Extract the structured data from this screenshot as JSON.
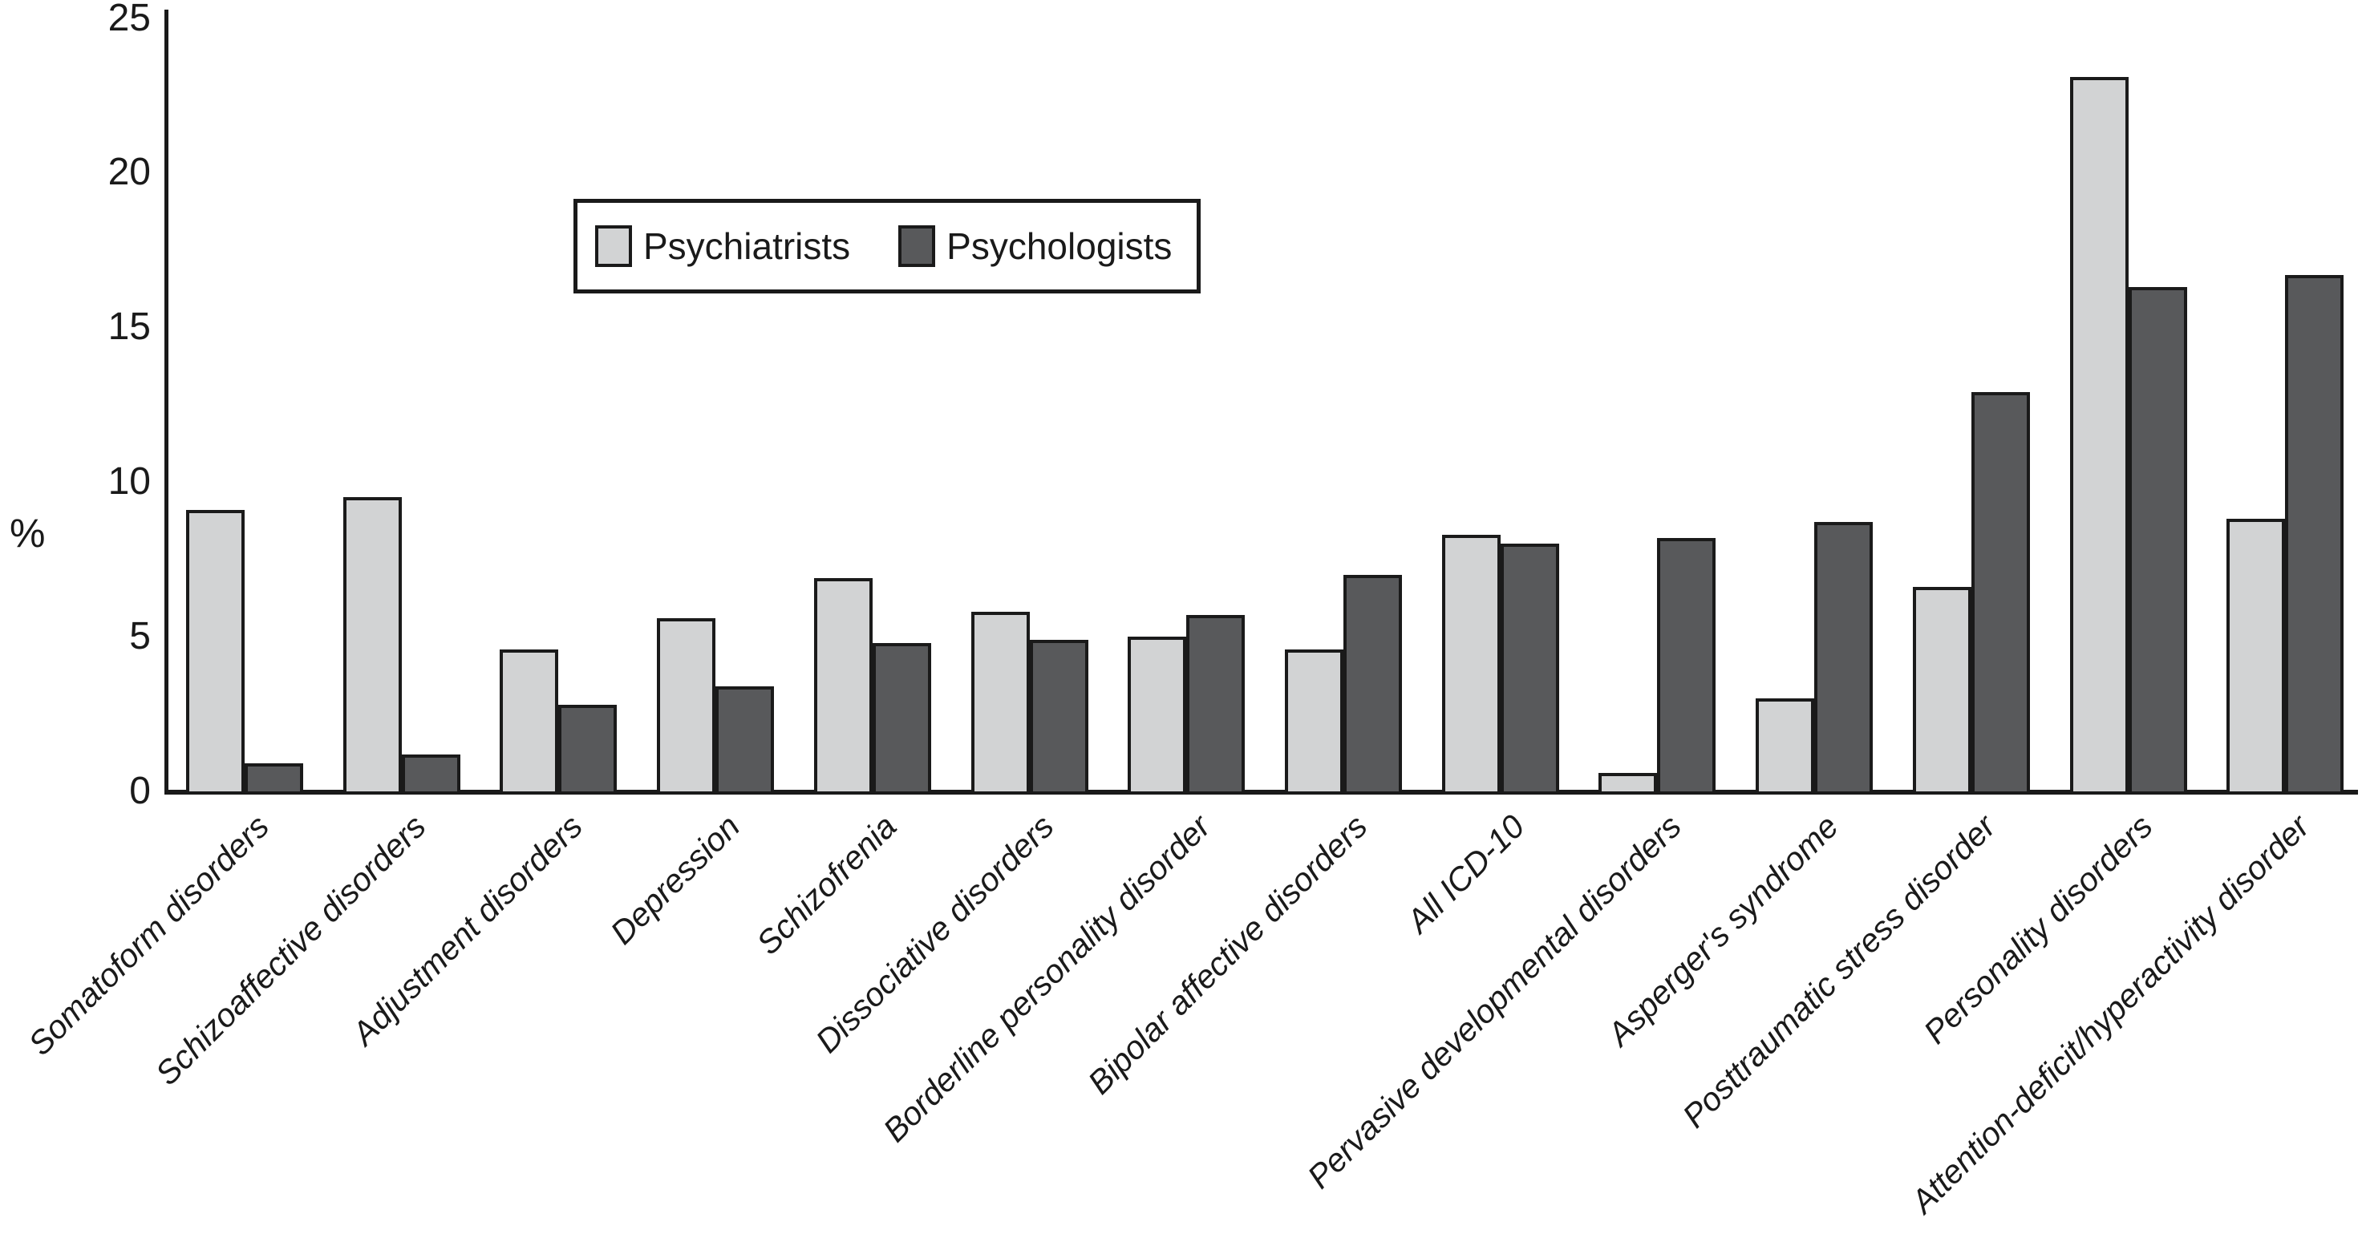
{
  "chart_data": {
    "type": "bar",
    "title": "",
    "ylabel": "%",
    "xlabel": "",
    "ylim": [
      0,
      25
    ],
    "yticks": [
      0,
      5,
      10,
      15,
      20,
      25
    ],
    "grid": false,
    "legend_position": "top-center-inside",
    "categories": [
      "Somatoform disorders",
      "Schizoaffective disorders",
      "Adjustment disorders",
      "Depression",
      "Schizofrenia",
      "Dissociative disorders",
      "Borderline personality disorder",
      "Bipolar affective disorders",
      "All ICD-10",
      "Pervasive developmental disorders",
      "Asperger's syndrome",
      "Posttraumatic stress disorder",
      "Personality disorders",
      "Attention-deficit/hyperactivity disorder"
    ],
    "series": [
      {
        "name": "Psychiatrists",
        "color": "#d2d3d4",
        "values": [
          9.1,
          9.5,
          4.6,
          5.6,
          6.9,
          5.8,
          5.0,
          4.6,
          8.3,
          0.6,
          3.0,
          6.6,
          23.1,
          8.8
        ]
      },
      {
        "name": "Psychologists",
        "color": "#58595b",
        "values": [
          0.9,
          1.2,
          2.8,
          3.4,
          4.8,
          4.9,
          5.7,
          7.0,
          8.0,
          8.2,
          8.7,
          12.9,
          16.3,
          16.7
        ]
      }
    ]
  },
  "colors": {
    "axis": "#1a1a1a",
    "text": "#1a1a1a",
    "background": "#ffffff"
  }
}
